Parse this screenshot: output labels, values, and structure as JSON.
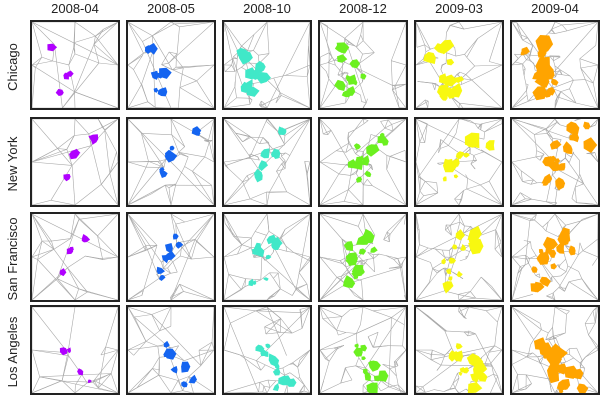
{
  "columns": [
    {
      "label": "2008-04",
      "color": "#b000ff"
    },
    {
      "label": "2008-05",
      "color": "#1464f0"
    },
    {
      "label": "2008-10",
      "color": "#40e8c8"
    },
    {
      "label": "2008-12",
      "color": "#6cf020"
    },
    {
      "label": "2009-03",
      "color": "#f8f810"
    },
    {
      "label": "2009-04",
      "color": "#ffa400"
    }
  ],
  "rows": [
    {
      "label": "Chicago"
    },
    {
      "label": "New York"
    },
    {
      "label": "San Francisco"
    },
    {
      "label": "Los Angeles"
    }
  ],
  "mesh_color": "#a8a8a8"
}
